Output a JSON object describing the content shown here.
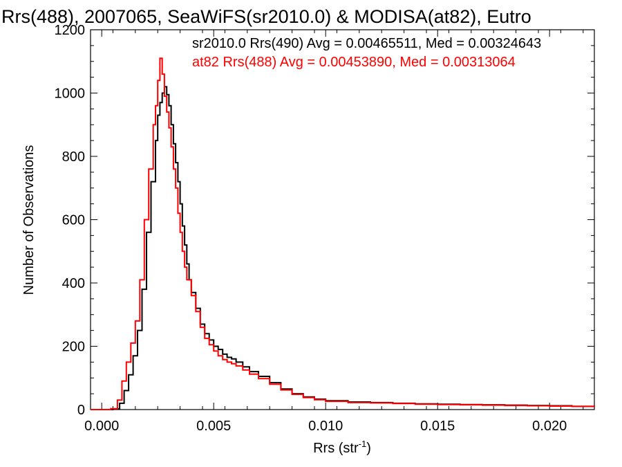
{
  "chart_data": {
    "type": "line",
    "title": "Rrs(488), 2007065, SeaWiFS(sr2010.0) & MODISA(at82), Eutro",
    "xlabel_base": "Rrs (str",
    "xlabel_sup": "-1",
    "xlabel_tail": ")",
    "ylabel": "Number of Observations",
    "xlim": [
      -0.0005,
      0.022
    ],
    "ylim": [
      0,
      1200
    ],
    "x_ticks": [
      "0.000",
      "0.005",
      "0.010",
      "0.015",
      "0.020"
    ],
    "x_tick_values": [
      0.0,
      0.005,
      0.01,
      0.015,
      0.02
    ],
    "y_ticks": [
      "0",
      "200",
      "400",
      "600",
      "800",
      "1000",
      "1200"
    ],
    "y_tick_values": [
      0,
      200,
      400,
      600,
      800,
      1000,
      1200
    ],
    "grid": false,
    "legend_position": "top-right",
    "series": [
      {
        "name": "sr2010.0 Rrs(490) Avg = 0.00465511, Med = 0.00324643",
        "color": "#000000",
        "points": [
          [
            -0.0005,
            0
          ],
          [
            0.0005,
            2
          ],
          [
            0.0008,
            20
          ],
          [
            0.001,
            60
          ],
          [
            0.0012,
            110
          ],
          [
            0.0014,
            170
          ],
          [
            0.0016,
            250
          ],
          [
            0.0018,
            380
          ],
          [
            0.002,
            560
          ],
          [
            0.0022,
            720
          ],
          [
            0.0024,
            850
          ],
          [
            0.0025,
            930
          ],
          [
            0.0026,
            970
          ],
          [
            0.0027,
            1000
          ],
          [
            0.0028,
            1020
          ],
          [
            0.0029,
            995
          ],
          [
            0.003,
            960
          ],
          [
            0.0031,
            900
          ],
          [
            0.0032,
            840
          ],
          [
            0.0033,
            780
          ],
          [
            0.0034,
            720
          ],
          [
            0.0035,
            650
          ],
          [
            0.0036,
            580
          ],
          [
            0.0037,
            520
          ],
          [
            0.0038,
            460
          ],
          [
            0.0039,
            410
          ],
          [
            0.004,
            370
          ],
          [
            0.0042,
            320
          ],
          [
            0.0044,
            270
          ],
          [
            0.0046,
            240
          ],
          [
            0.0048,
            220
          ],
          [
            0.005,
            200
          ],
          [
            0.0052,
            190
          ],
          [
            0.0054,
            175
          ],
          [
            0.0056,
            165
          ],
          [
            0.0058,
            160
          ],
          [
            0.006,
            150
          ],
          [
            0.0063,
            135
          ],
          [
            0.0066,
            120
          ],
          [
            0.007,
            105
          ],
          [
            0.0075,
            85
          ],
          [
            0.008,
            65
          ],
          [
            0.0085,
            50
          ],
          [
            0.009,
            40
          ],
          [
            0.0095,
            33
          ],
          [
            0.01,
            28
          ],
          [
            0.011,
            24
          ],
          [
            0.012,
            22
          ],
          [
            0.013,
            20
          ],
          [
            0.014,
            18
          ],
          [
            0.015,
            17
          ],
          [
            0.016,
            16
          ],
          [
            0.017,
            15
          ],
          [
            0.018,
            14
          ],
          [
            0.019,
            13
          ],
          [
            0.02,
            12
          ],
          [
            0.021,
            10
          ],
          [
            0.022,
            9
          ]
        ]
      },
      {
        "name": "at82 Rrs(488) Avg = 0.00453890, Med = 0.00313064",
        "color": "#ff0000",
        "points": [
          [
            -0.0005,
            0
          ],
          [
            0.0004,
            3
          ],
          [
            0.0007,
            30
          ],
          [
            0.0009,
            90
          ],
          [
            0.0011,
            150
          ],
          [
            0.0013,
            210
          ],
          [
            0.0015,
            280
          ],
          [
            0.0017,
            410
          ],
          [
            0.0019,
            600
          ],
          [
            0.0021,
            760
          ],
          [
            0.0023,
            900
          ],
          [
            0.0024,
            960
          ],
          [
            0.0025,
            1040
          ],
          [
            0.0026,
            1110
          ],
          [
            0.0027,
            1060
          ],
          [
            0.0028,
            990
          ],
          [
            0.0029,
            940
          ],
          [
            0.003,
            890
          ],
          [
            0.0031,
            830
          ],
          [
            0.0032,
            760
          ],
          [
            0.0033,
            700
          ],
          [
            0.0034,
            620
          ],
          [
            0.0035,
            560
          ],
          [
            0.0036,
            500
          ],
          [
            0.0037,
            450
          ],
          [
            0.0038,
            410
          ],
          [
            0.004,
            360
          ],
          [
            0.0042,
            310
          ],
          [
            0.0044,
            260
          ],
          [
            0.0046,
            225
          ],
          [
            0.0048,
            205
          ],
          [
            0.005,
            185
          ],
          [
            0.0052,
            170
          ],
          [
            0.0054,
            158
          ],
          [
            0.0056,
            150
          ],
          [
            0.0058,
            145
          ],
          [
            0.006,
            138
          ],
          [
            0.0063,
            125
          ],
          [
            0.0066,
            112
          ],
          [
            0.007,
            98
          ],
          [
            0.0075,
            80
          ],
          [
            0.008,
            62
          ],
          [
            0.0085,
            48
          ],
          [
            0.009,
            38
          ],
          [
            0.0095,
            31
          ],
          [
            0.01,
            26
          ],
          [
            0.011,
            22
          ],
          [
            0.012,
            21
          ],
          [
            0.013,
            19
          ],
          [
            0.014,
            17
          ],
          [
            0.015,
            16
          ],
          [
            0.016,
            15
          ],
          [
            0.017,
            14
          ],
          [
            0.018,
            13
          ],
          [
            0.019,
            12
          ],
          [
            0.02,
            11
          ],
          [
            0.021,
            10
          ],
          [
            0.022,
            8
          ]
        ]
      }
    ]
  }
}
